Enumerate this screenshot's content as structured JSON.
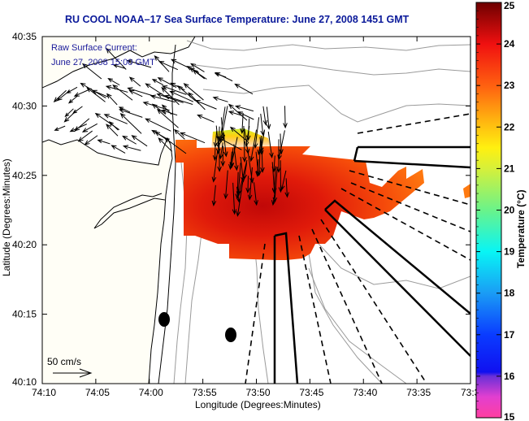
{
  "title": "RU COOL  NOAA–17  Sea Surface Temperature:  June 27, 2008 1451 GMT",
  "annotation": {
    "line1": "Raw Surface Current:",
    "line2": "June 27, 2008 15:00 GMT"
  },
  "scale_arrow_label": "50 cm/s",
  "colors": {
    "title": "#0b1a9a",
    "land": "#fffef6",
    "ocean": "#ffffff",
    "contour": "#9a9a9a"
  },
  "chart_data": {
    "type": "heatmap",
    "title": "RU COOL  NOAA–17  Sea Surface Temperature:  June 27, 2008 1451 GMT",
    "xlabel": "Longitude (Degrees:Minutes)",
    "ylabel": "Latitude (Degrees:Minutes)",
    "x_ticks": [
      "74:10",
      "74:05",
      "74:00",
      "73:55",
      "73:50",
      "73:45",
      "73:40",
      "73:35",
      "73:3"
    ],
    "y_ticks": [
      "40:10",
      "40:15",
      "40:20",
      "40:25",
      "40:30",
      "40:35"
    ],
    "xlim_minutes_west": [
      70,
      30
    ],
    "ylim_minutes_north": [
      10,
      35
    ],
    "colorbar": {
      "label": "Temperature (°C)",
      "range": [
        15,
        25
      ],
      "ticks": [
        "15",
        "16",
        "17",
        "18",
        "19",
        "20",
        "21",
        "22",
        "23",
        "24",
        "25"
      ]
    },
    "sst_summary": {
      "dominant_range_c": [
        22.5,
        24.5
      ],
      "warm_core_c": 24.5,
      "cool_north_edge_c": 21
    }
  }
}
